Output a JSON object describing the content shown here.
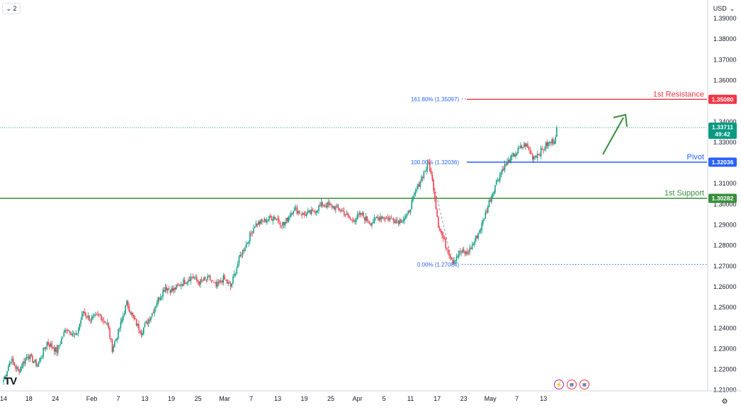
{
  "toolbar": {
    "interval_badge": "2",
    "chevron_icon": "chevron-down-icon",
    "currency": "USD"
  },
  "brand": {
    "logo_text": "TV"
  },
  "chart_data": {
    "type": "candlestick",
    "title": "",
    "xlabel": "",
    "ylabel": "",
    "y_axis_position": "right",
    "ylim": [
      1.2082,
      1.39
    ],
    "y_ticks": [
      "1.39000",
      "1.38000",
      "1.37000",
      "1.36000",
      "1.35000",
      "1.34000",
      "1.33000",
      "1.32000",
      "1.31000",
      "1.30000",
      "1.29000",
      "1.28000",
      "1.27000",
      "1.26000",
      "1.25000",
      "1.24000",
      "1.23000",
      "1.22000",
      "1.21000"
    ],
    "x_ticks": [
      "14",
      "18",
      "24",
      "Feb",
      "7",
      "13",
      "19",
      "25",
      "Mar",
      "7",
      "13",
      "19",
      "25",
      "Apr",
      "5",
      "11",
      "17",
      "23",
      "May",
      "7",
      "13"
    ],
    "price_path": [
      [
        0,
        1.215
      ],
      [
        6,
        1.225
      ],
      [
        12,
        1.219
      ],
      [
        20,
        1.227
      ],
      [
        28,
        1.222
      ],
      [
        36,
        1.233
      ],
      [
        44,
        1.229
      ],
      [
        52,
        1.24
      ],
      [
        60,
        1.236
      ],
      [
        66,
        1.248
      ],
      [
        72,
        1.244
      ],
      [
        80,
        1.246
      ],
      [
        86,
        1.242
      ],
      [
        90,
        1.23
      ],
      [
        95,
        1.238
      ],
      [
        102,
        1.252
      ],
      [
        108,
        1.244
      ],
      [
        114,
        1.238
      ],
      [
        122,
        1.246
      ],
      [
        128,
        1.254
      ],
      [
        134,
        1.26
      ],
      [
        140,
        1.258
      ],
      [
        148,
        1.262
      ],
      [
        156,
        1.265
      ],
      [
        162,
        1.262
      ],
      [
        170,
        1.264
      ],
      [
        176,
        1.26
      ],
      [
        182,
        1.264
      ],
      [
        188,
        1.26
      ],
      [
        196,
        1.275
      ],
      [
        202,
        1.282
      ],
      [
        208,
        1.29
      ],
      [
        216,
        1.292
      ],
      [
        224,
        1.294
      ],
      [
        232,
        1.29
      ],
      [
        240,
        1.298
      ],
      [
        248,
        1.295
      ],
      [
        256,
        1.296
      ],
      [
        264,
        1.3
      ],
      [
        272,
        1.299
      ],
      [
        280,
        1.297
      ],
      [
        288,
        1.292
      ],
      [
        296,
        1.295
      ],
      [
        304,
        1.291
      ],
      [
        312,
        1.294
      ],
      [
        320,
        1.293
      ],
      [
        328,
        1.292
      ],
      [
        334,
        1.294
      ],
      [
        340,
        1.304
      ],
      [
        346,
        1.313
      ],
      [
        352,
        1.32
      ],
      [
        356,
        1.308
      ],
      [
        360,
        1.29
      ],
      [
        366,
        1.28
      ],
      [
        372,
        1.2725
      ],
      [
        378,
        1.277
      ],
      [
        384,
        1.276
      ],
      [
        390,
        1.282
      ],
      [
        396,
        1.29
      ],
      [
        402,
        1.301
      ],
      [
        408,
        1.311
      ],
      [
        414,
        1.318
      ],
      [
        420,
        1.322
      ],
      [
        426,
        1.326
      ],
      [
        432,
        1.329
      ],
      [
        438,
        1.323
      ],
      [
        444,
        1.325
      ],
      [
        450,
        1.329
      ],
      [
        456,
        1.331
      ],
      [
        458,
        1.3371
      ]
    ],
    "x_tick_positions_index": [
      0,
      21,
      43,
      73,
      95,
      117,
      139,
      161,
      183,
      205,
      227,
      249,
      271,
      293,
      315,
      337,
      359,
      381,
      403,
      425,
      447
    ],
    "levels": [
      {
        "name": "1st Resistance",
        "value": 1.3508,
        "tag": "1.35080",
        "color": "#f23645"
      },
      {
        "name": "Pivot",
        "value": 1.32036,
        "tag": "1.32036",
        "color": "#2962ff"
      },
      {
        "name": "1st Support",
        "value": 1.30282,
        "tag": "1.30282",
        "color": "#388e3c"
      }
    ],
    "fibonacci": [
      {
        "label": "161.80% (1.35097)",
        "value": 1.35097
      },
      {
        "label": "100.00% (1.32036)",
        "value": 1.32036
      },
      {
        "label": "0.00% (1.27084)",
        "value": 1.27084
      }
    ],
    "last_price": {
      "value": 1.33711,
      "tag": "1.33711",
      "countdown": "49:42",
      "color": "#089981"
    },
    "candle_colors": {
      "up": "#089981",
      "down": "#f23645"
    }
  },
  "events_bar": {
    "icons": [
      "lightning-icon",
      "us-flag-icon",
      "us-flag-icon"
    ]
  }
}
